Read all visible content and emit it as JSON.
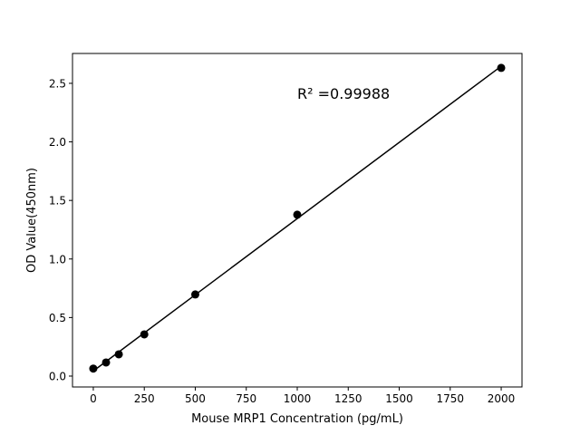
{
  "chart_data": {
    "type": "scatter",
    "title": "",
    "xlabel": "Mouse MRP1 Concentration (pg/mL)",
    "ylabel": "OD Value(450nm)",
    "xlim": [
      -102,
      2102
    ],
    "ylim": [
      -0.093,
      2.755
    ],
    "xticks": [
      0,
      250,
      500,
      750,
      1000,
      1250,
      1500,
      1750,
      2000
    ],
    "yticks": [
      0.0,
      0.5,
      1.0,
      1.5,
      2.0,
      2.5
    ],
    "ytick_labels": [
      "0.0",
      "0.5",
      "1.0",
      "1.5",
      "2.0",
      "2.5"
    ],
    "grid": false,
    "annotation": "R² =0.99988",
    "series": [
      {
        "x": [
          0,
          62.5,
          125,
          250,
          500,
          1000,
          2000
        ],
        "y": [
          0.064,
          0.116,
          0.186,
          0.356,
          0.697,
          1.378,
          2.632
        ],
        "marker": "circle",
        "color": "#000000",
        "fit_line": "linear"
      }
    ]
  }
}
